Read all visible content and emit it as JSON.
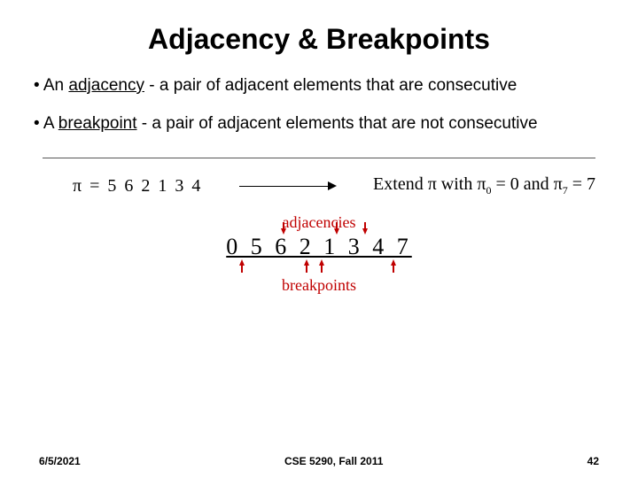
{
  "title": "Adjacency & Breakpoints",
  "bullet1_pre": "• An ",
  "bullet1_u": "adjacency",
  "bullet1_post": " - a pair of adjacent elements that are consecutive",
  "bullet2_pre": "• A ",
  "bullet2_u": "breakpoint",
  "bullet2_post": " - a pair of adjacent elements that are not consecutive",
  "pi_left": "π = 5  6  2  1  3  4",
  "pi_right_pre": "Extend π with π",
  "pi_right_sub0": "0",
  "pi_right_mid": " = 0 and π",
  "pi_right_sub7": "7",
  "pi_right_end": " = 7",
  "adjacencies_label": "adjacencies",
  "sequence": "0  5  6  2  1  3  4  7",
  "breakpoints_label": "breakpoints",
  "adjacency_arrow_positions_pct": [
    30,
    58,
    73
  ],
  "breakpoint_arrow_positions_pct": [
    8,
    42,
    50,
    88
  ],
  "colors": {
    "accent": "#c00000",
    "text": "#000000",
    "bg": "#ffffff"
  },
  "footer": {
    "date": "6/5/2021",
    "course": "CSE 5290, Fall 2011",
    "page": "42"
  }
}
